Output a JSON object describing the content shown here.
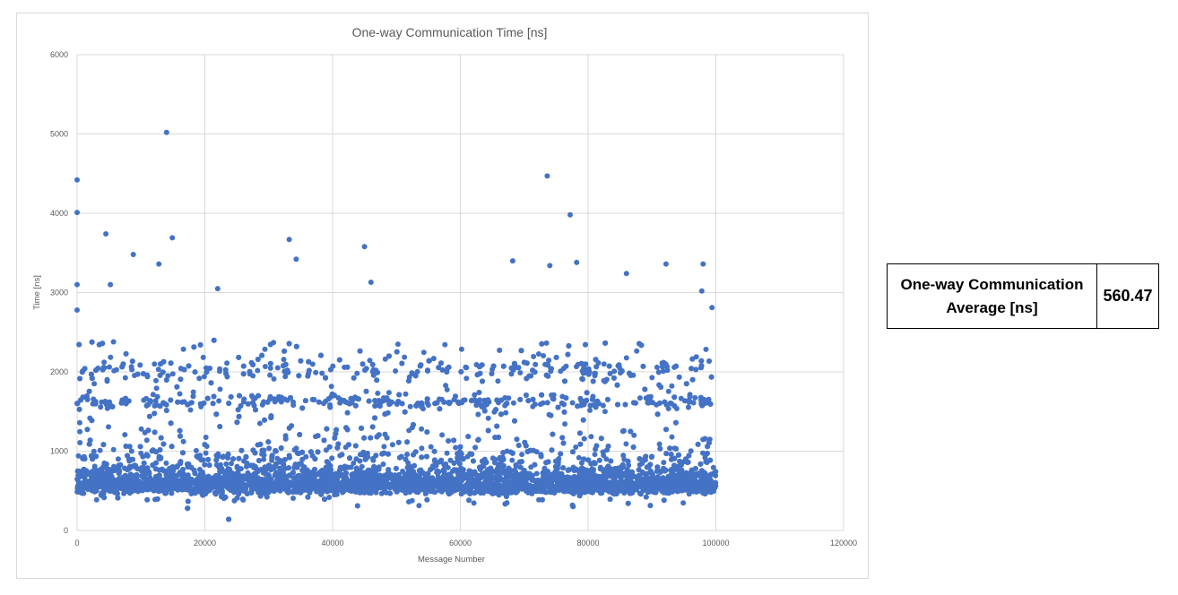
{
  "chart_data": {
    "type": "scatter",
    "title": "One-way Communication Time [ns]",
    "xlabel": "Message Number",
    "ylabel": "Time [ns]",
    "xlim": [
      0,
      120000
    ],
    "ylim": [
      0,
      6000
    ],
    "xticks": [
      0,
      20000,
      40000,
      60000,
      80000,
      100000,
      120000
    ],
    "yticks": [
      0,
      1000,
      2000,
      3000,
      4000,
      5000,
      6000
    ],
    "grid": true,
    "legend": "none",
    "marker_color": "#4472c4",
    "series": [
      {
        "x_range": [
          0,
          100000
        ],
        "bands": [
          {
            "center": 580,
            "spread": 100,
            "share": 0.6
          },
          {
            "center": 750,
            "spread": 180,
            "share": 0.2
          },
          {
            "center": 1620,
            "spread": 40,
            "share": 0.07
          },
          {
            "center": 2030,
            "spread": 60,
            "share": 0.05
          },
          {
            "center": 1300,
            "spread": 500,
            "share": 0.08
          }
        ],
        "outliers": [
          {
            "x": 0,
            "y": 4420
          },
          {
            "x": 0,
            "y": 4010
          },
          {
            "x": 0,
            "y": 3100
          },
          {
            "x": 0,
            "y": 2780
          },
          {
            "x": 4500,
            "y": 3740
          },
          {
            "x": 5200,
            "y": 3100
          },
          {
            "x": 8800,
            "y": 3480
          },
          {
            "x": 12800,
            "y": 3360
          },
          {
            "x": 14000,
            "y": 5020
          },
          {
            "x": 14900,
            "y": 3690
          },
          {
            "x": 22000,
            "y": 3050
          },
          {
            "x": 33200,
            "y": 3670
          },
          {
            "x": 34300,
            "y": 3420
          },
          {
            "x": 45000,
            "y": 3580
          },
          {
            "x": 46000,
            "y": 3130
          },
          {
            "x": 68200,
            "y": 3400
          },
          {
            "x": 73600,
            "y": 4470
          },
          {
            "x": 74000,
            "y": 3340
          },
          {
            "x": 77200,
            "y": 3980
          },
          {
            "x": 78200,
            "y": 3380
          },
          {
            "x": 86000,
            "y": 3240
          },
          {
            "x": 92200,
            "y": 3360
          },
          {
            "x": 98000,
            "y": 3360
          },
          {
            "x": 97800,
            "y": 3020
          },
          {
            "x": 99400,
            "y": 2810
          }
        ]
      }
    ]
  },
  "summary": {
    "label": "One-way Communication Average [ns]",
    "value": "560.47"
  }
}
